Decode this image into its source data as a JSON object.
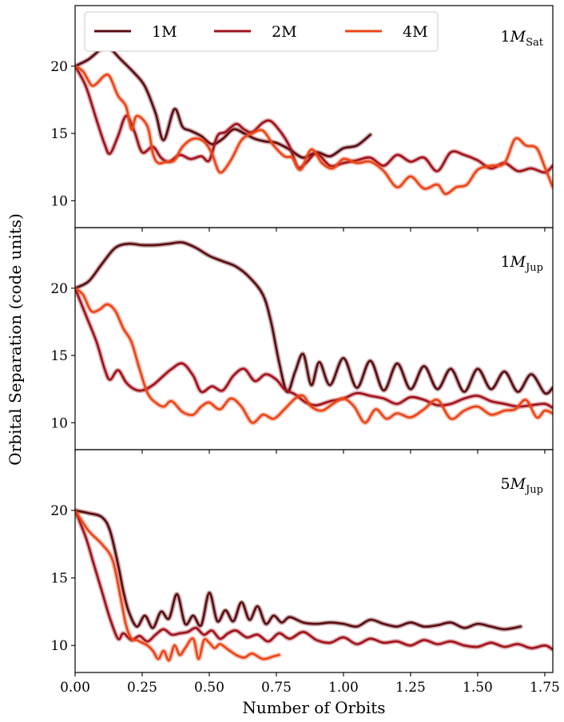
{
  "colors": {
    "1M": "#5a0c10",
    "2M": "#a0121b",
    "4M": "#ec4418"
  },
  "chart_data": {
    "type": "line",
    "ylabel": "Orbital Separation (code units)",
    "xlabel": "Number of Orbits",
    "xlim": [
      0,
      1.78
    ],
    "xticks": [
      "0.00",
      "0.25",
      "0.50",
      "0.75",
      "1.00",
      "1.25",
      "1.50",
      "1.75"
    ],
    "yticks": [
      "10",
      "15",
      "20"
    ],
    "legend": {
      "placement": "top",
      "entries": [
        "1M",
        "2M",
        "4M"
      ]
    },
    "panels": [
      {
        "label": "M",
        "label_prefix": "1",
        "label_sub": "Sat",
        "ylim": [
          8,
          24.5
        ],
        "series": [
          {
            "name": "1M",
            "x": [
              0,
              0.05,
              0.1,
              0.13,
              0.17,
              0.22,
              0.26,
              0.3,
              0.33,
              0.37,
              0.4,
              0.43,
              0.47,
              0.51,
              0.55,
              0.59,
              0.63,
              0.67,
              0.71,
              0.75,
              0.8,
              0.85,
              0.9,
              0.95,
              1.0,
              1.05,
              1.1
            ],
            "y": [
              20,
              20.5,
              21.3,
              21.3,
              20.5,
              19.5,
              18.5,
              16.5,
              14.5,
              16.8,
              15.5,
              15.2,
              14.8,
              14.2,
              14.6,
              15.3,
              15.0,
              14.6,
              14.4,
              14.3,
              13.8,
              13.2,
              13.6,
              13.3,
              13.9,
              14.1,
              14.9
            ]
          },
          {
            "name": "2M",
            "x": [
              0,
              0.04,
              0.08,
              0.11,
              0.13,
              0.16,
              0.19,
              0.22,
              0.25,
              0.29,
              0.32,
              0.35,
              0.39,
              0.43,
              0.47,
              0.5,
              0.53,
              0.56,
              0.6,
              0.63,
              0.66,
              0.7,
              0.73,
              0.77,
              0.8,
              0.83,
              0.86,
              0.9,
              0.95,
              1.0,
              1.05,
              1.1,
              1.15,
              1.2,
              1.25,
              1.3,
              1.35,
              1.4,
              1.45,
              1.5,
              1.55,
              1.6,
              1.65,
              1.7,
              1.75,
              1.78
            ],
            "y": [
              20,
              18.5,
              16,
              14.2,
              13.5,
              14.8,
              16.3,
              15.2,
              13.6,
              14.0,
              13.2,
              12.9,
              13.4,
              13.1,
              13.3,
              13.0,
              14.8,
              15.1,
              15.7,
              15.3,
              15.1,
              15.8,
              15.9,
              15.0,
              14.0,
              12.5,
              12.8,
              13.5,
              12.6,
              12.8,
              13.0,
              13.2,
              12.6,
              13.4,
              12.9,
              13.2,
              12.2,
              13.6,
              13.4,
              13.0,
              12.4,
              12.8,
              12.2,
              12.4,
              12.1,
              12.6
            ]
          },
          {
            "name": "4M",
            "x": [
              0,
              0.03,
              0.06,
              0.08,
              0.11,
              0.13,
              0.16,
              0.19,
              0.21,
              0.23,
              0.27,
              0.29,
              0.31,
              0.34,
              0.37,
              0.4,
              0.44,
              0.48,
              0.51,
              0.54,
              0.58,
              0.62,
              0.66,
              0.7,
              0.74,
              0.78,
              0.81,
              0.84,
              0.88,
              0.92,
              0.96,
              1.0,
              1.05,
              1.1,
              1.15,
              1.2,
              1.25,
              1.3,
              1.35,
              1.38,
              1.42,
              1.46,
              1.5,
              1.55,
              1.6,
              1.64,
              1.68,
              1.72,
              1.75,
              1.78
            ],
            "y": [
              20,
              19.6,
              18.6,
              18.7,
              19.3,
              19.2,
              17.8,
              17.0,
              15.3,
              16.3,
              15.5,
              13.5,
              12.8,
              12.9,
              13.0,
              14.0,
              14.6,
              14.4,
              13.5,
              12.1,
              13.0,
              14.5,
              15.0,
              15.2,
              14.1,
              13.3,
              13.2,
              12.3,
              13.8,
              12.8,
              12.4,
              13.1,
              12.8,
              12.9,
              12.2,
              11.0,
              11.8,
              10.9,
              11.2,
              10.5,
              11.0,
              11.2,
              12.3,
              12.6,
              12.8,
              14.6,
              14.1,
              13.9,
              12.5,
              11.0
            ]
          }
        ]
      },
      {
        "label": "M",
        "label_prefix": "1",
        "label_sub": "Jup",
        "ylim": [
          8,
          24.5
        ],
        "series": [
          {
            "name": "1M",
            "x": [
              0,
              0.05,
              0.1,
              0.15,
              0.2,
              0.25,
              0.3,
              0.35,
              0.4,
              0.45,
              0.5,
              0.55,
              0.6,
              0.65,
              0.7,
              0.73,
              0.76,
              0.79,
              0.82,
              0.85,
              0.88,
              0.91,
              0.95,
              1.0,
              1.05,
              1.1,
              1.15,
              1.2,
              1.25,
              1.3,
              1.35,
              1.4,
              1.45,
              1.5,
              1.55,
              1.6,
              1.65,
              1.7,
              1.75,
              1.78
            ],
            "y": [
              20,
              20.5,
              21.8,
              23.0,
              23.3,
              23.2,
              23.2,
              23.3,
              23.4,
              23.0,
              22.4,
              22.0,
              21.6,
              20.8,
              19.5,
              17.5,
              14.5,
              12.3,
              13.8,
              15.1,
              12.8,
              14.5,
              12.8,
              14.8,
              12.6,
              14.6,
              12.4,
              14.4,
              12.5,
              14.2,
              12.5,
              14.0,
              12.3,
              14.0,
              12.5,
              13.8,
              12.3,
              13.6,
              12.2,
              12.6
            ]
          },
          {
            "name": "2M",
            "x": [
              0,
              0.04,
              0.08,
              0.11,
              0.13,
              0.16,
              0.19,
              0.22,
              0.25,
              0.29,
              0.33,
              0.36,
              0.4,
              0.44,
              0.47,
              0.51,
              0.55,
              0.59,
              0.63,
              0.67,
              0.71,
              0.75,
              0.78,
              0.82,
              0.86,
              0.9,
              0.95,
              1.0,
              1.05,
              1.1,
              1.15,
              1.2,
              1.25,
              1.3,
              1.35,
              1.4,
              1.45,
              1.5,
              1.55,
              1.6,
              1.65,
              1.7,
              1.75,
              1.78
            ],
            "y": [
              20,
              18,
              16,
              14,
              13.2,
              13.9,
              13.0,
              12.5,
              12.4,
              12.8,
              13.5,
              14.0,
              14.4,
              13.5,
              12.3,
              12.7,
              12.4,
              13.5,
              14.0,
              13.1,
              13.6,
              13.2,
              12.5,
              12.1,
              11.5,
              11.3,
              11.6,
              11.8,
              12.2,
              12.0,
              11.8,
              11.4,
              11.9,
              11.7,
              11.3,
              11.4,
              11.8,
              12.0,
              11.6,
              11.4,
              11.2,
              11.3,
              11.4,
              11.1
            ]
          },
          {
            "name": "4M",
            "x": [
              0,
              0.03,
              0.06,
              0.09,
              0.12,
              0.15,
              0.18,
              0.21,
              0.24,
              0.27,
              0.3,
              0.33,
              0.36,
              0.4,
              0.44,
              0.47,
              0.5,
              0.54,
              0.58,
              0.62,
              0.66,
              0.7,
              0.74,
              0.78,
              0.82,
              0.85,
              0.88,
              0.92,
              0.96,
              1.0,
              1.04,
              1.08,
              1.12,
              1.16,
              1.2,
              1.25,
              1.3,
              1.35,
              1.4,
              1.45,
              1.5,
              1.55,
              1.6,
              1.64,
              1.68,
              1.72,
              1.75,
              1.78
            ],
            "y": [
              20,
              19.5,
              18.3,
              18.4,
              18.8,
              18.3,
              17.0,
              16.0,
              14.0,
              12.2,
              11.5,
              11.2,
              11.6,
              10.8,
              10.6,
              11.2,
              11.5,
              11.0,
              11.8,
              11.2,
              10.0,
              10.6,
              10.3,
              11.0,
              11.8,
              12.0,
              11.2,
              10.9,
              11.4,
              11.8,
              11.2,
              10.0,
              11.0,
              10.3,
              10.7,
              10.4,
              11.0,
              11.7,
              10.3,
              10.9,
              11.2,
              10.6,
              10.9,
              11.0,
              11.7,
              10.4,
              10.9,
              10.7
            ]
          }
        ]
      },
      {
        "label": "M",
        "label_prefix": "5",
        "label_sub": "Jup",
        "ylim": [
          8,
          24.5
        ],
        "series": [
          {
            "name": "1M",
            "x": [
              0,
              0.05,
              0.1,
              0.13,
              0.16,
              0.18,
              0.2,
              0.23,
              0.26,
              0.29,
              0.32,
              0.35,
              0.38,
              0.41,
              0.44,
              0.47,
              0.5,
              0.53,
              0.56,
              0.59,
              0.62,
              0.65,
              0.68,
              0.71,
              0.74,
              0.77,
              0.8,
              0.85,
              0.9,
              0.95,
              1.0,
              1.05,
              1.1,
              1.15,
              1.2,
              1.25,
              1.3,
              1.35,
              1.4,
              1.45,
              1.5,
              1.55,
              1.6,
              1.66
            ],
            "y": [
              20,
              19.8,
              19.5,
              18.5,
              16.0,
              14.0,
              12.5,
              11.4,
              12.2,
              11.3,
              12.5,
              12.0,
              13.8,
              11.6,
              12.2,
              11.5,
              13.9,
              11.8,
              12.6,
              11.8,
              13.2,
              11.9,
              12.9,
              11.6,
              12.2,
              11.7,
              12.1,
              11.7,
              11.6,
              11.7,
              11.6,
              11.4,
              11.9,
              11.6,
              11.4,
              11.7,
              11.4,
              11.5,
              11.7,
              11.3,
              11.6,
              11.4,
              11.2,
              11.4
            ]
          },
          {
            "name": "2M",
            "x": [
              0,
              0.04,
              0.07,
              0.1,
              0.13,
              0.16,
              0.18,
              0.21,
              0.24,
              0.27,
              0.3,
              0.33,
              0.36,
              0.39,
              0.42,
              0.45,
              0.48,
              0.51,
              0.54,
              0.57,
              0.6,
              0.64,
              0.68,
              0.72,
              0.76,
              0.8,
              0.85,
              0.9,
              0.95,
              1.0,
              1.05,
              1.1,
              1.15,
              1.2,
              1.25,
              1.3,
              1.35,
              1.4,
              1.45,
              1.5,
              1.55,
              1.6,
              1.65,
              1.7,
              1.75,
              1.78
            ],
            "y": [
              20,
              18.0,
              16.0,
              14.0,
              12.0,
              10.5,
              10.9,
              10.4,
              10.7,
              10.3,
              10.8,
              11.2,
              10.8,
              10.9,
              11.0,
              11.3,
              10.8,
              11.1,
              10.5,
              10.9,
              11.1,
              10.6,
              10.8,
              10.3,
              10.9,
              10.5,
              11.0,
              10.4,
              10.2,
              10.6,
              10.1,
              10.5,
              10.2,
              10.3,
              10.0,
              10.4,
              10.1,
              10.3,
              10.0,
              9.9,
              10.2,
              9.9,
              10.1,
              9.8,
              10.0,
              9.7
            ]
          },
          {
            "name": "4M",
            "x": [
              0,
              0.05,
              0.1,
              0.14,
              0.17,
              0.19,
              0.21,
              0.23,
              0.25,
              0.27,
              0.29,
              0.31,
              0.33,
              0.35,
              0.37,
              0.39,
              0.41,
              0.44,
              0.46,
              0.48,
              0.5,
              0.52,
              0.54,
              0.57,
              0.6,
              0.63,
              0.66,
              0.7,
              0.74,
              0.76
            ],
            "y": [
              20,
              18.5,
              17.5,
              16.3,
              13.5,
              11.5,
              10.5,
              10.4,
              10.2,
              10.0,
              9.6,
              9.0,
              9.6,
              8.9,
              10.0,
              9.3,
              9.8,
              10.5,
              9.0,
              10.4,
              10.2,
              9.8,
              10.1,
              9.7,
              9.3,
              9.1,
              9.4,
              9.0,
              9.2,
              9.3
            ]
          }
        ]
      }
    ]
  }
}
